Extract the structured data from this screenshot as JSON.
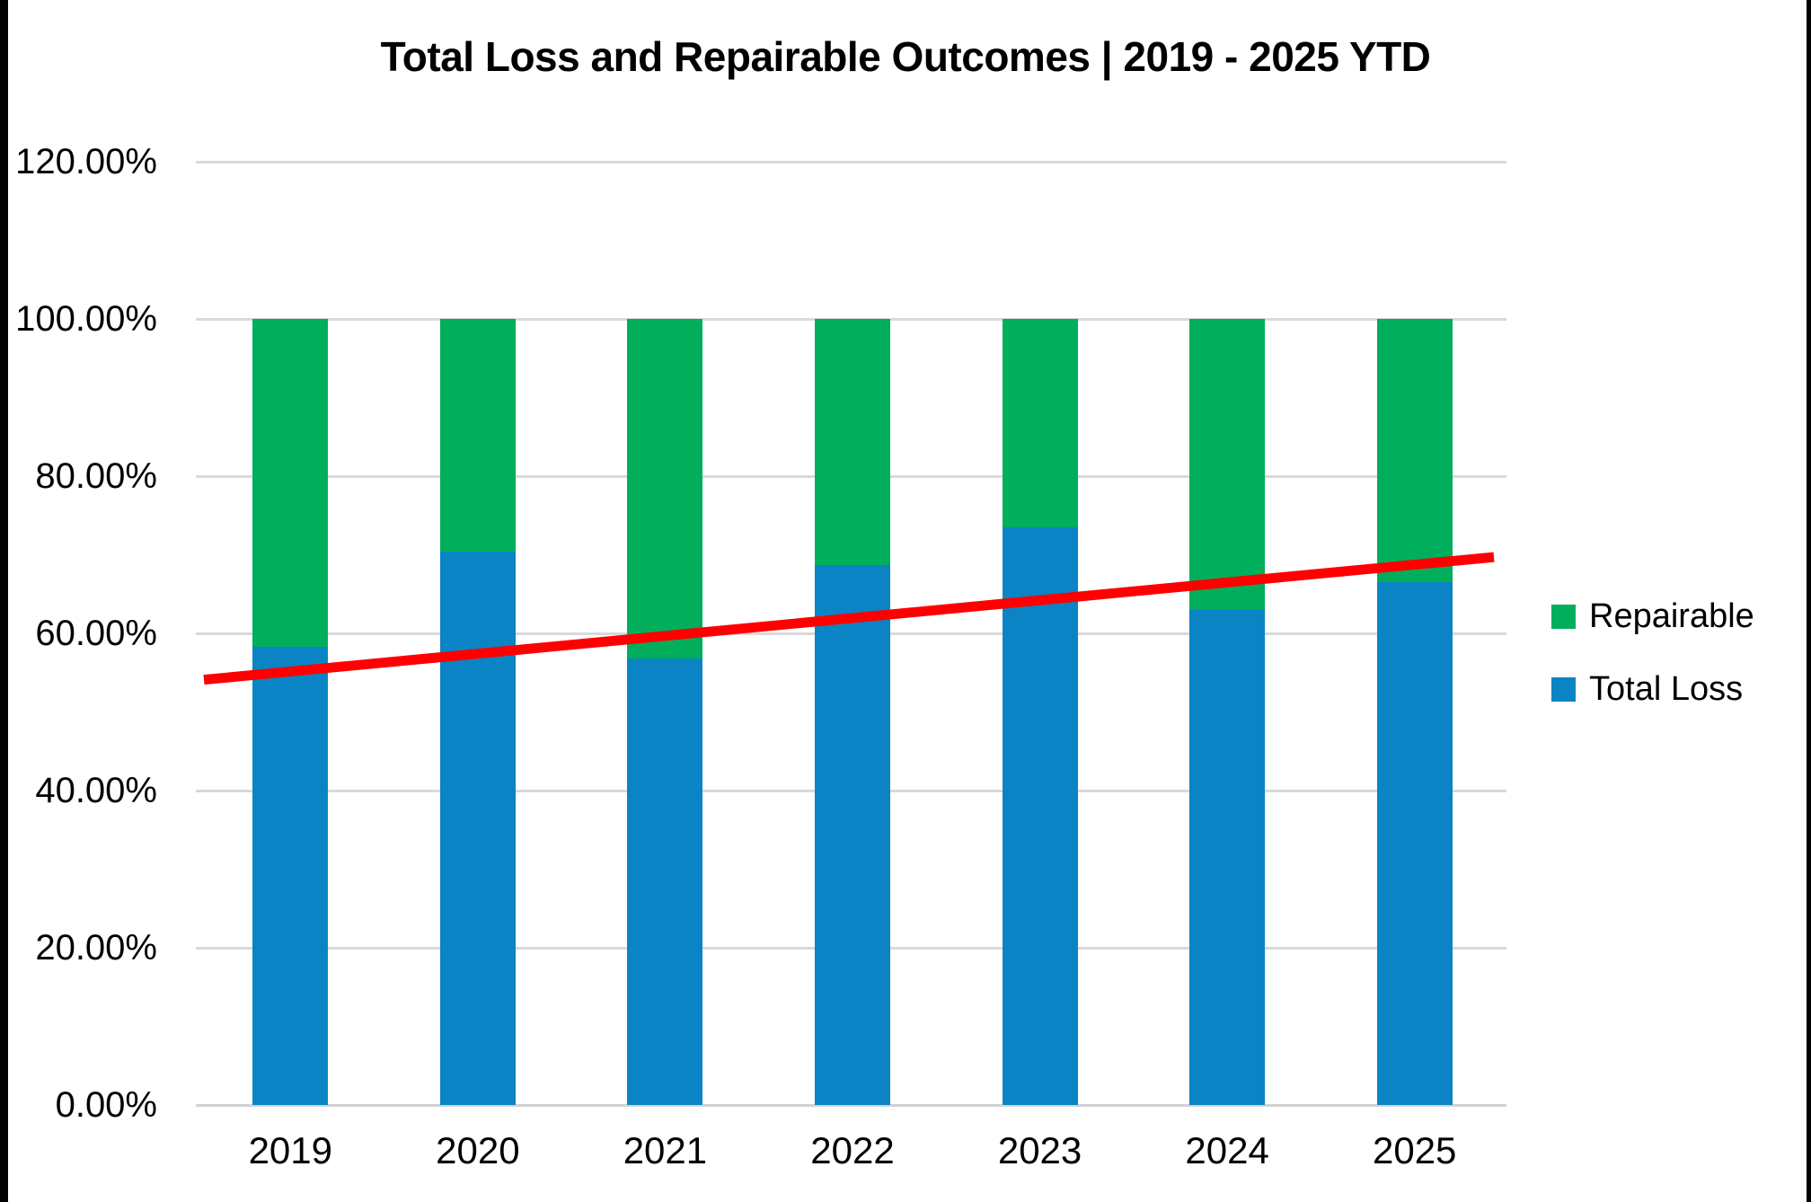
{
  "title": "Total Loss and Repairable Outcomes | 2019 - 2025 YTD",
  "legend": {
    "items": [
      {
        "label": "Repairable",
        "color": "#00AE5B"
      },
      {
        "label": "Total Loss",
        "color": "#0A84C5"
      }
    ]
  },
  "chart_data": {
    "type": "bar",
    "stacked": true,
    "title": "Total Loss and Repairable Outcomes | 2019 - 2025 YTD",
    "categories": [
      "2019",
      "2020",
      "2021",
      "2022",
      "2023",
      "2024",
      "2025"
    ],
    "series": [
      {
        "name": "Total Loss",
        "color": "#0A84C5",
        "values": [
          58.3,
          70.4,
          56.8,
          68.7,
          73.5,
          63.0,
          66.5
        ]
      },
      {
        "name": "Repairable",
        "color": "#00AE5B",
        "values": [
          41.7,
          29.6,
          43.2,
          31.3,
          26.5,
          37.0,
          33.5
        ]
      }
    ],
    "trendline": {
      "color": "#FF0000",
      "start_pct": 54.1,
      "end_pct": 69.7
    },
    "xlabel": "",
    "ylabel": "",
    "ylim": [
      0,
      120
    ],
    "ytick_step": 20,
    "ytick_labels": [
      "0.00%",
      "20.00%",
      "40.00%",
      "60.00%",
      "80.00%",
      "100.00%",
      "120.00%"
    ],
    "grid": true,
    "legend_position": "right",
    "gridline_color": "#D9D9D9",
    "text_color": "#000000",
    "background_color": "#FFFFFF"
  }
}
